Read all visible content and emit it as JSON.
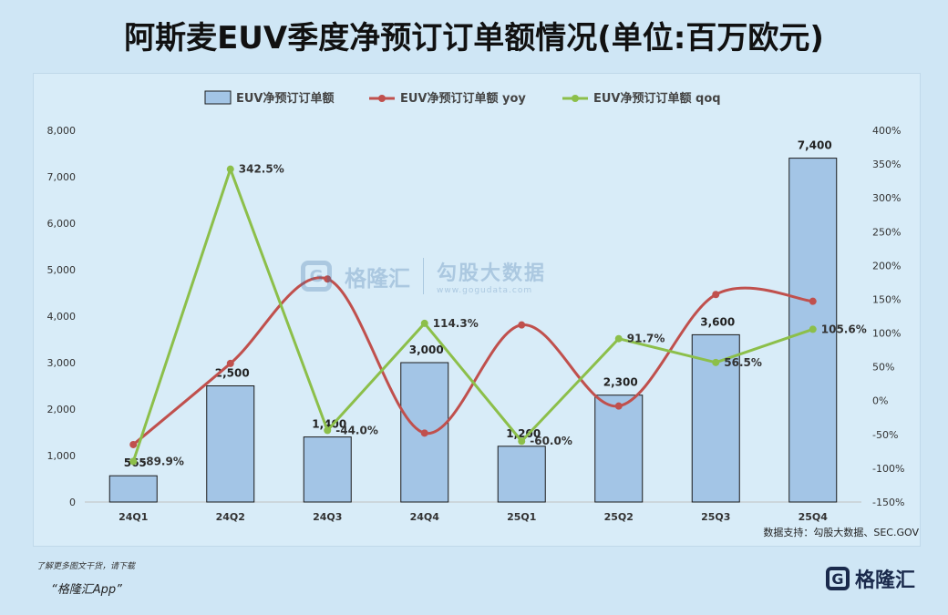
{
  "title": "阿斯麦EUV季度净预订订单额情况(单位:百万欧元)",
  "source": "数据支持：勾股大数据、SEC.GOV",
  "footer": {
    "line1": "了解更多图文干货，请下载",
    "line2": "“格隆汇App”",
    "logo_text": "格隆汇",
    "logo_glyph": "G"
  },
  "watermark": {
    "brand": "格隆汇",
    "glyph": "G",
    "cn": "勾股大数据",
    "url": "www.gogudata.com"
  },
  "colors": {
    "bar_fill": "#a3c5e6",
    "bar_stroke": "#1a1a1a",
    "yoy": "#c0504d",
    "qoq": "#8cbf4a"
  },
  "chart_data": {
    "type": "bar",
    "title": "阿斯麦EUV季度净预订订单额情况(单位:百万欧元)",
    "categories": [
      "24Q1",
      "24Q2",
      "24Q3",
      "24Q4",
      "25Q1",
      "25Q2",
      "25Q3",
      "25Q4"
    ],
    "bar_labels": [
      "565",
      "2,500",
      "1,400",
      "3,000",
      "1,200",
      "2,300",
      "3,600",
      "7,400"
    ],
    "series": [
      {
        "name": "EUV净预订订单额",
        "kind": "bar",
        "axis": "left",
        "values": [
          565,
          2500,
          1400,
          3000,
          1200,
          2300,
          3600,
          7400
        ]
      },
      {
        "name": "EUV净预订订单额 yoy",
        "kind": "line",
        "axis": "right",
        "values": [
          -65,
          55,
          180,
          -48,
          112,
          -8,
          157,
          147
        ]
      },
      {
        "name": "EUV净预订订单额 qoq",
        "kind": "line",
        "axis": "right",
        "values": [
          -89.9,
          342.5,
          -44.0,
          114.3,
          -60.0,
          91.7,
          56.5,
          105.6
        ],
        "labels": [
          "-89.9%",
          "342.5%",
          "-44.0%",
          "114.3%",
          "-60.0%",
          "91.7%",
          "56.5%",
          "105.6%"
        ]
      }
    ],
    "y_left": {
      "range": [
        0,
        8000
      ],
      "ticks": [
        "0",
        "1,000",
        "2,000",
        "3,000",
        "4,000",
        "5,000",
        "6,000",
        "7,000",
        "8,000"
      ]
    },
    "y_right": {
      "range": [
        -150,
        400
      ],
      "ticks": [
        "-150%",
        "-100%",
        "-50%",
        "0%",
        "50%",
        "100%",
        "150%",
        "200%",
        "250%",
        "300%",
        "350%",
        "400%"
      ]
    },
    "legend_position": "top-center",
    "grid": false
  }
}
